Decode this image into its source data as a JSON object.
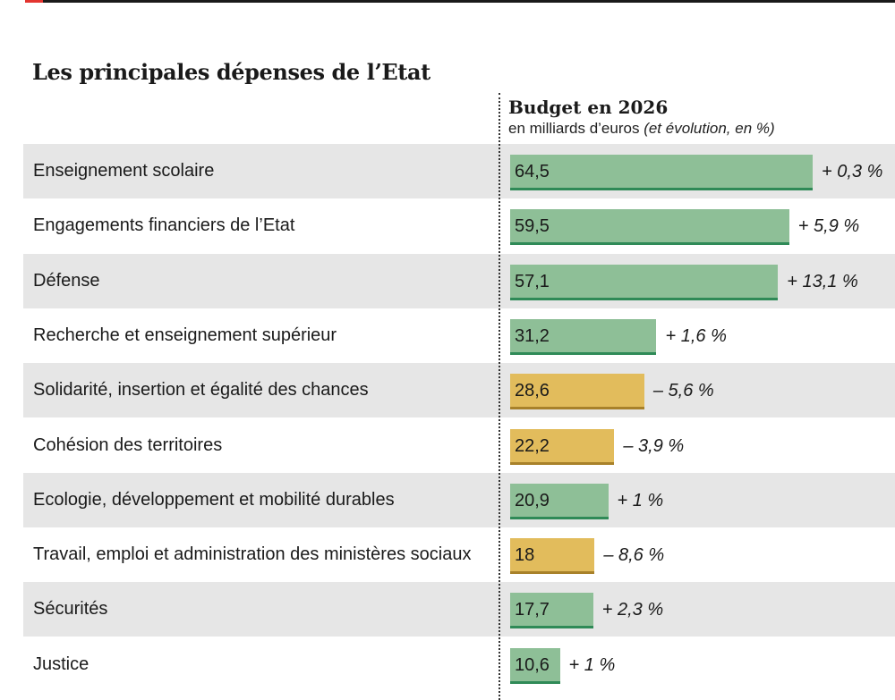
{
  "title": "Les principales dépenses de l’Etat",
  "column_header": {
    "main": "Budget en 2026",
    "sub_prefix": "en milliards d’euros ",
    "sub_italic": "(et évolution, en %)"
  },
  "colors": {
    "increase": "#8ebf97",
    "decrease": "#e2bc5c"
  },
  "chart_data": {
    "type": "bar",
    "orientation": "horizontal",
    "title": "Les principales dépenses de l’Etat",
    "value_label": "Budget en 2026",
    "unit": "en milliards d’euros (et évolution, en %)",
    "categories": [
      "Enseignement scolaire",
      "Engagements financiers de l’Etat",
      "Défense",
      "Recherche et enseignement supérieur",
      "Solidarité, insertion et égalité des chances",
      "Cohésion des territoires",
      "Ecologie, développement et mobilité durables",
      "Travail, emploi et administration des ministères sociaux",
      "Sécurités",
      "Justice"
    ],
    "values": [
      64.5,
      59.5,
      57.1,
      31.2,
      28.6,
      22.2,
      20.9,
      18,
      17.7,
      10.6
    ],
    "value_labels": [
      "64,5",
      "59,5",
      "57,1",
      "31,2",
      "28,6",
      "22,2",
      "20,9",
      "18",
      "17,7",
      "10,6"
    ],
    "changes_pct": [
      0.3,
      5.9,
      13.1,
      1.6,
      -5.6,
      -3.9,
      1,
      -8.6,
      2.3,
      1
    ],
    "change_labels": [
      "+ 0,3 %",
      "+ 5,9 %",
      "+ 13,1 %",
      "+ 1,6 %",
      "– 5,6 %",
      "– 3,9 %",
      "+ 1 %",
      "– 8,6 %",
      "+ 2,3 %",
      "+ 1 %"
    ],
    "xlim": [
      0,
      64.5
    ]
  }
}
